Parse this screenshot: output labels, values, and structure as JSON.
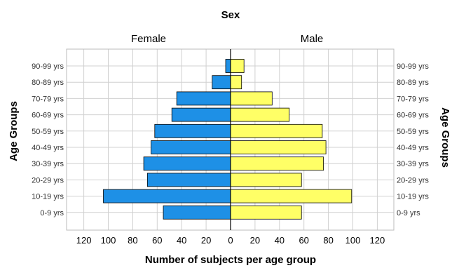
{
  "chart_data": {
    "type": "bar",
    "subtype": "population-pyramid",
    "title": "Sex",
    "xlabel": "Number of subjects per age group",
    "ylabel": "Age Groups",
    "categories": [
      "90-99 yrs",
      "80-89 yrs",
      "70-79 yrs",
      "60-69 yrs",
      "50-59 yrs",
      "40-49 yrs",
      "30-39 yrs",
      "20-29 yrs",
      "10-19 yrs",
      "0-9 yrs"
    ],
    "series": [
      {
        "name": "Female",
        "color": "#1e90e6",
        "values": [
          4,
          15,
          44,
          48,
          62,
          65,
          71,
          68,
          104,
          55
        ]
      },
      {
        "name": "Male",
        "color": "#ffff66",
        "values": [
          11,
          9,
          34,
          48,
          75,
          78,
          76,
          58,
          99,
          58
        ]
      }
    ],
    "xticks": [
      "120",
      "100",
      "80",
      "60",
      "40",
      "20",
      "0",
      "20",
      "40",
      "60",
      "80",
      "100",
      "120"
    ],
    "xlim": [
      -130,
      130
    ],
    "grid": true
  }
}
